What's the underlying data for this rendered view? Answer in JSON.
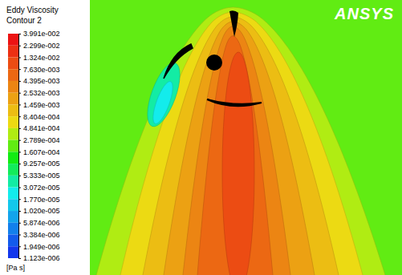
{
  "chart_data": {
    "type": "contour",
    "title": "Eddy Viscosity",
    "subtitle": "Contour 2",
    "unit": "[Pa s]",
    "logo": "ANSYS",
    "log": true,
    "colorbar": {
      "ticks": [
        {
          "value": 0.03991,
          "label": "3.991e-002"
        },
        {
          "value": 0.02299,
          "label": "2.299e-002"
        },
        {
          "value": 0.01324,
          "label": "1.324e-002"
        },
        {
          "value": 0.00763,
          "label": "7.630e-003"
        },
        {
          "value": 0.004395,
          "label": "4.395e-003"
        },
        {
          "value": 0.002532,
          "label": "2.532e-003"
        },
        {
          "value": 0.001459,
          "label": "1.459e-003"
        },
        {
          "value": 0.0008404,
          "label": "8.404e-004"
        },
        {
          "value": 0.0004841,
          "label": "4.841e-004"
        },
        {
          "value": 0.0002789,
          "label": "2.789e-004"
        },
        {
          "value": 0.0001607,
          "label": "1.607e-004"
        },
        {
          "value": 9.257e-05,
          "label": "9.257e-005"
        },
        {
          "value": 5.333e-05,
          "label": "5.333e-005"
        },
        {
          "value": 3.072e-05,
          "label": "3.072e-005"
        },
        {
          "value": 1.77e-05,
          "label": "1.770e-005"
        },
        {
          "value": 1.02e-05,
          "label": "1.020e-005"
        },
        {
          "value": 5.874e-06,
          "label": "5.874e-006"
        },
        {
          "value": 3.384e-06,
          "label": "3.384e-006"
        },
        {
          "value": 1.949e-06,
          "label": "1.949e-006"
        },
        {
          "value": 1.123e-06,
          "label": "1.123e-006"
        }
      ]
    },
    "field": {
      "background": 0.0002,
      "plume": [
        0.00035,
        0.0006,
        0.0011,
        0.0019,
        0.0033,
        0.0058,
        0.01
      ],
      "wake": [
        4e-05,
        2.3e-05
      ]
    }
  }
}
